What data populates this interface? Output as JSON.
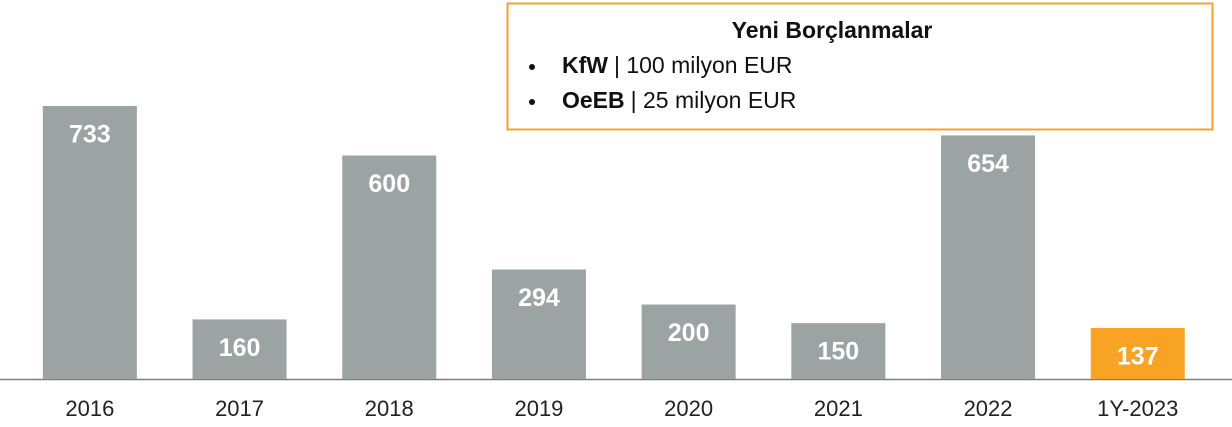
{
  "chart_data": {
    "type": "bar",
    "categories": [
      "2016",
      "2017",
      "2018",
      "2019",
      "2020",
      "2021",
      "2022",
      "1Y-2023"
    ],
    "values": [
      733,
      160,
      600,
      294,
      200,
      150,
      654,
      137
    ],
    "colors": [
      "#9ba3a3",
      "#9ba3a3",
      "#9ba3a3",
      "#9ba3a3",
      "#9ba3a3",
      "#9ba3a3",
      "#9ba3a3",
      "#f8a324"
    ],
    "annotation": {
      "title": "Yeni Borçlanmalar",
      "items": [
        {
          "bold": "KfW",
          "text": "| 100 milyon EUR"
        },
        {
          "bold": "OeEB",
          "text": "| 25 milyon  EUR"
        }
      ]
    }
  }
}
